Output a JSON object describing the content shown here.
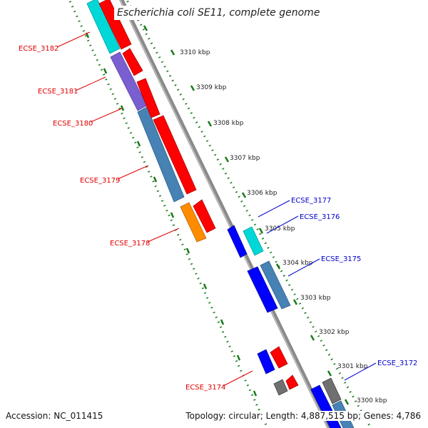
{
  "title": "Escherichia coli SE11, complete genome",
  "footer": {
    "accession": "Accession: NC_011415",
    "topology": "Topology: circular; Length: 4,887,515 bp; Genes: 4,786"
  },
  "ticks": [
    "3310 kbp",
    "3309 kbp",
    "3308 kbp",
    "3307 kbp",
    "3306 kbp",
    "3305 kbp",
    "3304 kbp",
    "3303 kbp",
    "3302 kbp",
    "3301 kbp",
    "3300 kbp"
  ],
  "genes_left": [
    "ECSE_3182",
    "ECSE_3181",
    "ECSE_3180",
    "ECSE_3179",
    "ECSE_3178",
    "ECSE_3174"
  ],
  "genes_right": [
    "ECSE_3177",
    "ECSE_3176",
    "ECSE_3175",
    "ECSE_3172"
  ],
  "colors": {
    "left_label": "#e00000",
    "right_label": "#0000cc",
    "backbone": "#8a8a8a",
    "tick_ring": "#1a7a1a",
    "cds_red": "#ff0000",
    "cds_blue": "#0000ff",
    "cyan": "#00d8d8",
    "slate": "#7a5fd0",
    "orange": "#ff8c00",
    "steel": "#4682b4",
    "gray": "#707070"
  }
}
